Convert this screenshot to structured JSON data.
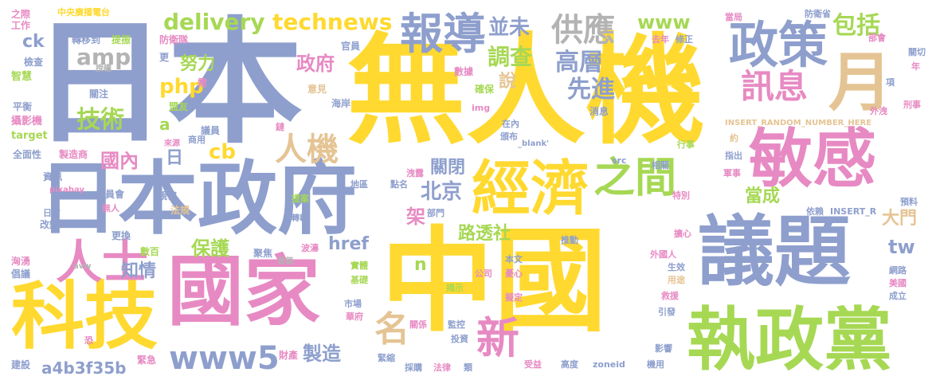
{
  "words": [
    {
      "text": "日本",
      "color": "#8e9fcd"
    },
    {
      "text": "無人機",
      "color": "#ffd92f"
    },
    {
      "text": "中國",
      "color": "#ffd92f"
    },
    {
      "text": "國家",
      "color": "#e78ac3"
    },
    {
      "text": "日本政府",
      "color": "#8e9fcd"
    },
    {
      "text": "議題",
      "color": "#8e9fcd"
    },
    {
      "text": "執政黨",
      "color": "#a6d854"
    },
    {
      "text": "科技",
      "color": "#ffd92f"
    },
    {
      "text": "敏感",
      "color": "#e78ac3"
    },
    {
      "text": "經濟",
      "color": "#ffd92f"
    },
    {
      "text": "政策",
      "color": "#8e9fcd"
    },
    {
      "text": "月",
      "color": "#e5c494"
    },
    {
      "text": "報導",
      "color": "#8e9fcd"
    },
    {
      "text": "之間",
      "color": "#a6d854"
    },
    {
      "text": "人士",
      "color": "#e78ac3"
    },
    {
      "text": "人機",
      "color": "#e5c494"
    },
    {
      "text": "訊息",
      "color": "#e78ac3"
    },
    {
      "text": "新",
      "color": "#e78ac3"
    },
    {
      "text": "www5",
      "color": "#8e9fcd"
    },
    {
      "text": "名",
      "color": "#e5c494"
    },
    {
      "text": "delivery",
      "color": "#a6d854"
    },
    {
      "text": "technews",
      "color": "#ffd92f"
    },
    {
      "text": "供應",
      "color": "#b3b3b3"
    },
    {
      "text": "包括",
      "color": "#a6d854"
    },
    {
      "text": "amp",
      "color": "#b3b3b3"
    },
    {
      "text": "php",
      "color": "#ffd92f"
    },
    {
      "text": "技術",
      "color": "#a6d854"
    },
    {
      "text": "www",
      "color": "#a6d854"
    },
    {
      "text": "並未",
      "color": "#8e9fcd"
    },
    {
      "text": "調查",
      "color": "#a6d854"
    },
    {
      "text": "高層",
      "color": "#8e9fcd"
    },
    {
      "text": "先進",
      "color": "#8e9fcd"
    },
    {
      "text": "政府",
      "color": "#e78ac3"
    },
    {
      "text": "努力",
      "color": "#a6d854"
    },
    {
      "text": "說",
      "color": "#e5c494"
    },
    {
      "text": "國內",
      "color": "#e78ac3"
    },
    {
      "text": "cb",
      "color": "#ffd92f"
    },
    {
      "text": "日",
      "color": "#8e9fcd"
    },
    {
      "text": "a",
      "color": "#a6d854"
    },
    {
      "text": "北京",
      "color": "#8e9fcd"
    },
    {
      "text": "關閉",
      "color": "#8e9fcd"
    },
    {
      "text": "架",
      "color": "#e78ac3"
    },
    {
      "text": "路透社",
      "color": "#a6d854"
    },
    {
      "text": "當成",
      "color": "#a6d854"
    },
    {
      "text": "tw",
      "color": "#8e9fcd"
    },
    {
      "text": "大門",
      "color": "#e5c494"
    },
    {
      "text": "保護",
      "color": "#a6d854"
    },
    {
      "text": "知情",
      "color": "#8e9fcd"
    },
    {
      "text": "href",
      "color": "#8e9fcd"
    },
    {
      "text": "n",
      "color": "#a6d854"
    },
    {
      "text": "製造",
      "color": "#8e9fcd"
    },
    {
      "text": "a4b3f35b",
      "color": "#8e9fcd"
    },
    {
      "text": "ck",
      "color": "#8e9fcd"
    },
    {
      "text": "之際",
      "color": "#e78ac3"
    },
    {
      "text": "中央廣播電台",
      "color": "#ffd92f"
    },
    {
      "text": "工作",
      "color": "#e78ac3"
    },
    {
      "text": "轉移到",
      "color": "#8e9fcd"
    },
    {
      "text": "提振",
      "color": "#a6d854"
    },
    {
      "text": "防衛隊",
      "color": "#e78ac3"
    },
    {
      "text": "檢查",
      "color": "#8e9fcd"
    },
    {
      "text": "智慧",
      "color": "#a6d854"
    },
    {
      "text": "授權",
      "color": "#b3b3b3"
    },
    {
      "text": "更",
      "color": "#8e9fcd"
    },
    {
      "text": "需",
      "color": "#e78ac3"
    },
    {
      "text": "關注",
      "color": "#8e9fcd"
    },
    {
      "text": "平衡",
      "color": "#8e9fcd"
    },
    {
      "text": "攝影機",
      "color": "#e78ac3"
    },
    {
      "text": "target",
      "color": "#a6d854"
    },
    {
      "text": "盟友",
      "color": "#a6d854"
    },
    {
      "text": "全面性",
      "color": "#8e9fcd"
    },
    {
      "text": "製造商",
      "color": "#e78ac3"
    },
    {
      "text": "來源",
      "color": "#e78ac3"
    },
    {
      "text": "商用",
      "color": "#8e9fcd"
    },
    {
      "text": "議員",
      "color": "#8e9fcd"
    },
    {
      "text": "資訊",
      "color": "#8e9fcd"
    },
    {
      "text": "pixabay",
      "color": "#e78ac3"
    },
    {
      "text": "委員會",
      "color": "#8e9fcd"
    },
    {
      "text": "親密",
      "color": "#8e9fcd"
    },
    {
      "text": "無人",
      "color": "#e78ac3"
    },
    {
      "text": "法規",
      "color": "#e5c494"
    },
    {
      "text": "日方",
      "color": "#8e9fcd"
    },
    {
      "text": "改變",
      "color": "#8e9fcd"
    },
    {
      "text": "更換",
      "color": "#8e9fcd"
    },
    {
      "text": "數百",
      "color": "#a6d854"
    },
    {
      "text": "洶湧",
      "color": "#e78ac3"
    },
    {
      "text": "倡議",
      "color": "#8e9fcd"
    },
    {
      "text": "avw",
      "color": "#b3b3b3"
    },
    {
      "text": "恐",
      "color": "#e78ac3"
    },
    {
      "text": "建設",
      "color": "#8e9fcd"
    },
    {
      "text": "緊急",
      "color": "#e78ac3"
    },
    {
      "text": "財產",
      "color": "#e78ac3"
    },
    {
      "text": "首個",
      "color": "#b3b3b3"
    },
    {
      "text": "官員",
      "color": "#8e9fcd"
    },
    {
      "text": "意見",
      "color": "#e5c494"
    },
    {
      "text": "海岸",
      "color": "#8e9fcd"
    },
    {
      "text": "數據",
      "color": "#e78ac3"
    },
    {
      "text": "確保",
      "color": "#a6d854"
    },
    {
      "text": "消息",
      "color": "#8e9fcd"
    },
    {
      "text": "在內",
      "color": "#8e9fcd"
    },
    {
      "text": "頒布",
      "color": "#8e9fcd"
    },
    {
      "text": "鏈",
      "color": "#e78ac3"
    },
    {
      "text": "img",
      "color": "#e78ac3"
    },
    {
      "text": "_blank'",
      "color": "#8e9fcd"
    },
    {
      "text": "src",
      "color": "#8e9fcd"
    },
    {
      "text": "洩露",
      "color": "#e78ac3"
    },
    {
      "text": "點名",
      "color": "#8e9fcd"
    },
    {
      "text": "地區",
      "color": "#8e9fcd"
    },
    {
      "text": "提案",
      "color": "#a6d854"
    },
    {
      "text": "轉載",
      "color": "#8e9fcd"
    },
    {
      "text": "部門",
      "color": "#8e9fcd"
    },
    {
      "text": "波濤",
      "color": "#e78ac3"
    },
    {
      "text": "聚焦",
      "color": "#8e9fcd"
    },
    {
      "text": "實體",
      "color": "#a6d854"
    },
    {
      "text": "基礎",
      "color": "#a6d854"
    },
    {
      "text": "公司",
      "color": "#e78ac3"
    },
    {
      "text": "出口",
      "color": "#ffd92f"
    },
    {
      "text": "揭示",
      "color": "#a6d854"
    },
    {
      "text": "本文",
      "color": "#8e9fcd"
    },
    {
      "text": "憂心",
      "color": "#e78ac3"
    },
    {
      "text": "推動",
      "color": "#8e9fcd"
    },
    {
      "text": "市場",
      "color": "#8e9fcd"
    },
    {
      "text": "華府",
      "color": "#e78ac3"
    },
    {
      "text": "擬定",
      "color": "#e78ac3"
    },
    {
      "text": "關係",
      "color": "#e78ac3"
    },
    {
      "text": "監控",
      "color": "#8e9fcd"
    },
    {
      "text": "投資",
      "color": "#8e9fcd"
    },
    {
      "text": "緊縮",
      "color": "#8e9fcd"
    },
    {
      "text": "採購",
      "color": "#8e9fcd"
    },
    {
      "text": "法律",
      "color": "#e78ac3"
    },
    {
      "text": "類",
      "color": "#8e9fcd"
    },
    {
      "text": "受益",
      "color": "#e78ac3"
    },
    {
      "text": "高度",
      "color": "#8e9fcd"
    },
    {
      "text": "zoneid",
      "color": "#8e9fcd"
    },
    {
      "text": "機用",
      "color": "#8e9fcd"
    },
    {
      "text": "影響",
      "color": "#8e9fcd"
    },
    {
      "text": "當局",
      "color": "#e78ac3"
    },
    {
      "text": "防衛省",
      "color": "#8e9fcd"
    },
    {
      "text": "部會",
      "color": "#e78ac3"
    },
    {
      "text": "去年",
      "color": "#e78ac3"
    },
    {
      "text": "修正",
      "color": "#8e9fcd"
    },
    {
      "text": "關切",
      "color": "#8e9fcd"
    },
    {
      "text": "年",
      "color": "#e78ac3"
    },
    {
      "text": "項",
      "color": "#8e9fcd"
    },
    {
      "text": "刑事",
      "color": "#e78ac3"
    },
    {
      "text": "外洩",
      "color": "#e78ac3"
    },
    {
      "text": "INSERT_RANDOM_NUMBER_HERE",
      "color": "#e5c494"
    },
    {
      "text": "約",
      "color": "#e5c494"
    },
    {
      "text": "行事",
      "color": "#a6d854"
    },
    {
      "text": "指出",
      "color": "#8e9fcd"
    },
    {
      "text": "相關",
      "color": "#8e9fcd"
    },
    {
      "text": "軍事",
      "color": "#e78ac3"
    },
    {
      "text": "特別",
      "color": "#e78ac3"
    },
    {
      "text": "依賴",
      "color": "#8e9fcd"
    },
    {
      "text": "INSERT_R",
      "color": "#8e9fcd"
    },
    {
      "text": "預料",
      "color": "#8e9fcd"
    },
    {
      "text": "擴心",
      "color": "#e78ac3"
    },
    {
      "text": "外國人",
      "color": "#e78ac3"
    },
    {
      "text": "生效",
      "color": "#8e9fcd"
    },
    {
      "text": "用途",
      "color": "#e5c494"
    },
    {
      "text": "網路",
      "color": "#8e9fcd"
    },
    {
      "text": "美國",
      "color": "#e78ac3"
    },
    {
      "text": "成立",
      "color": "#8e9fcd"
    },
    {
      "text": "救援",
      "color": "#e78ac3"
    },
    {
      "text": "引發",
      "color": "#8e9fcd"
    }
  ]
}
